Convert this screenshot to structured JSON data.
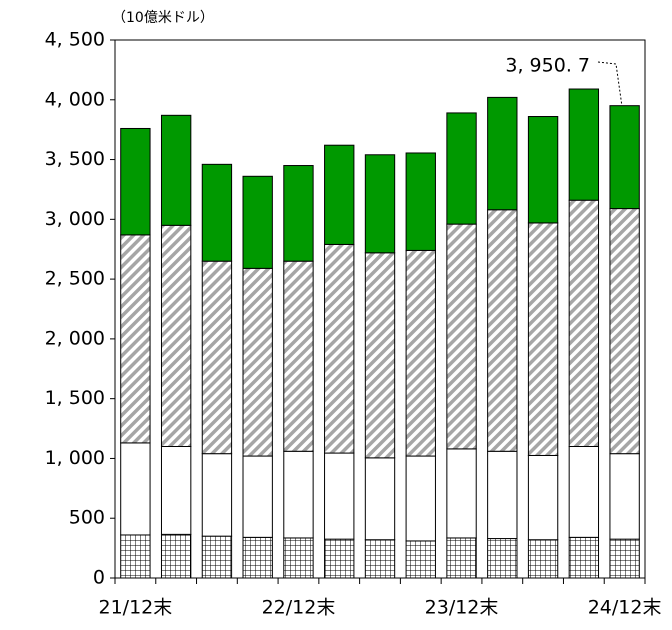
{
  "chart_data": {
    "type": "bar",
    "stacked": true,
    "unit_label": "（10億米ドル）",
    "categories": [
      "21/12末",
      null,
      null,
      null,
      "22/12末",
      null,
      null,
      null,
      "23/12末",
      null,
      null,
      null,
      "24/12末"
    ],
    "series": [
      {
        "color": "#000000",
        "pattern": "grid",
        "values": [
          360,
          365,
          350,
          340,
          335,
          325,
          320,
          310,
          335,
          330,
          320,
          340,
          325
        ]
      },
      {
        "color": "#ffffff",
        "values": [
          770,
          735,
          690,
          680,
          725,
          720,
          685,
          710,
          745,
          730,
          705,
          760,
          715
        ]
      },
      {
        "color": "#a6a6a6",
        "pattern": "hatch",
        "values": [
          1740,
          1850,
          1610,
          1570,
          1590,
          1745,
          1715,
          1720,
          1880,
          2020,
          1945,
          2060,
          2050
        ]
      },
      {
        "color": "#009900",
        "values": [
          890,
          920,
          810,
          770,
          800,
          830,
          820,
          815,
          930,
          940,
          890,
          930,
          860.7
        ]
      }
    ],
    "annotations": [
      {
        "text": "3, 950. 7",
        "value": 3950.7
      }
    ],
    "ylim": [
      0,
      4500
    ],
    "yticks": [
      0,
      500,
      {
        "value": 1000,
        "label": "1, 000"
      },
      {
        "value": 1500,
        "label": "1, 500"
      },
      {
        "value": 2000,
        "label": "2, 000"
      },
      {
        "value": 2500,
        "label": "2, 500"
      },
      {
        "value": 3000,
        "label": "3, 000"
      },
      {
        "value": 3500,
        "label": "3, 500"
      },
      {
        "value": 4000,
        "label": "4, 000"
      },
      {
        "value": 4500,
        "label": "4, 500"
      }
    ]
  }
}
